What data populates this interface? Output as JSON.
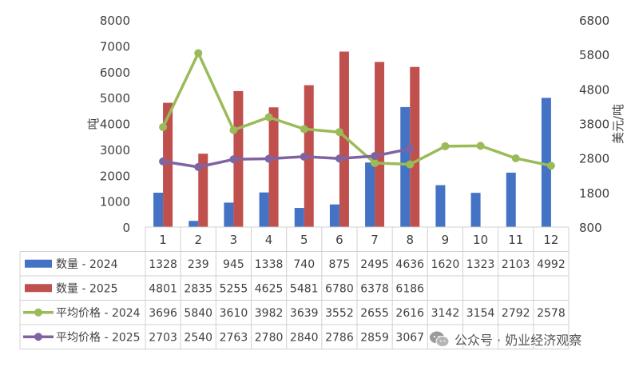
{
  "chart_data": {
    "type": "bar+line",
    "categories": [
      "1",
      "2",
      "3",
      "4",
      "5",
      "6",
      "7",
      "8",
      "9",
      "10",
      "11",
      "12"
    ],
    "ylabel_left": "吨",
    "ylabel_right": "美元/吨",
    "ylim_left": [
      0,
      8000
    ],
    "yticks_left": [
      "0",
      "1000",
      "2000",
      "3000",
      "4000",
      "5000",
      "6000",
      "7000",
      "8000"
    ],
    "ylim_right": [
      800,
      6800
    ],
    "yticks_right": [
      "800",
      "1800",
      "2800",
      "3800",
      "4800",
      "5800",
      "6800"
    ],
    "grid": false,
    "legend": "table-below",
    "series": [
      {
        "name": "数量 - 2024",
        "kind": "bar",
        "axis": "left",
        "color": "#4472C4",
        "values": [
          1328,
          239,
          945,
          1338,
          740,
          875,
          2495,
          4636,
          1620,
          1323,
          2103,
          4992
        ]
      },
      {
        "name": "数量 - 2025",
        "kind": "bar",
        "axis": "left",
        "color": "#C0504D",
        "values": [
          4801,
          2835,
          5255,
          4625,
          5481,
          6780,
          6378,
          6186,
          null,
          null,
          null,
          null
        ]
      },
      {
        "name": "平均价格 - 2024",
        "kind": "line",
        "axis": "right",
        "color": "#9BBB59",
        "values": [
          3696,
          5840,
          3610,
          3982,
          3639,
          3552,
          2655,
          2616,
          3142,
          3154,
          2792,
          2578
        ]
      },
      {
        "name": "平均价格 - 2025",
        "kind": "line",
        "axis": "right",
        "color": "#8064A2",
        "values": [
          2703,
          2540,
          2763,
          2780,
          2840,
          2786,
          2859,
          3067,
          null,
          null,
          null,
          null
        ]
      }
    ]
  },
  "watermark": {
    "text": "公众号 · 奶业经济观察",
    "icon": "wechat-icon"
  }
}
